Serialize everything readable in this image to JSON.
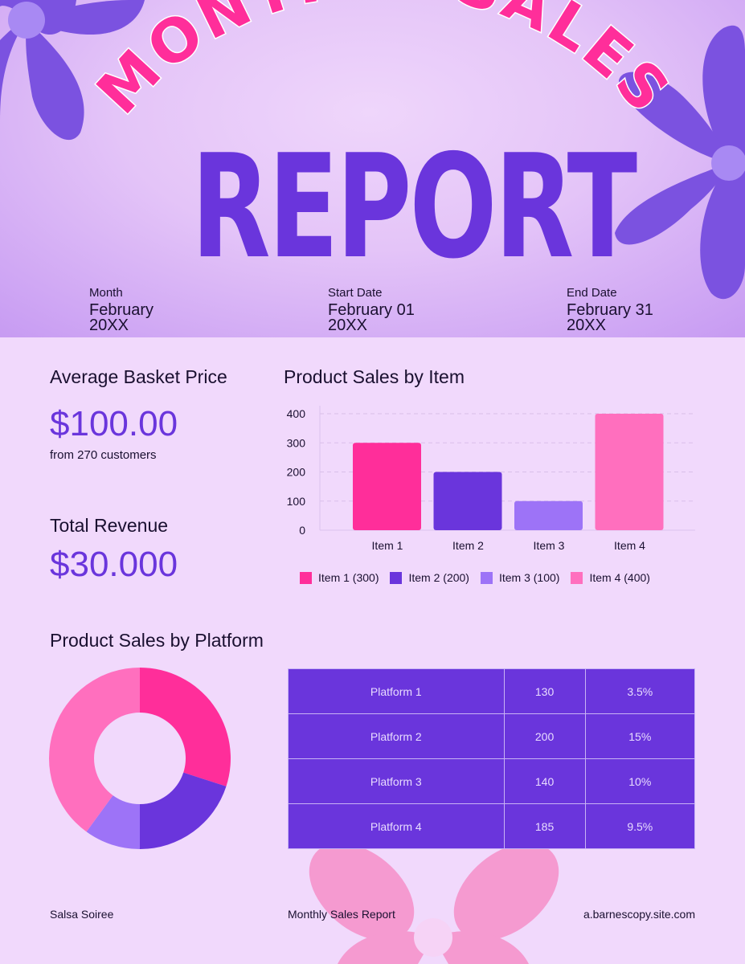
{
  "title": {
    "arc": "MONTHLY SALES",
    "main": "REPORT"
  },
  "dates": [
    {
      "label": "Month",
      "value1": "February",
      "value2": "20XX"
    },
    {
      "label": "Start Date",
      "value1": "February 01",
      "value2": "20XX"
    },
    {
      "label": "End Date",
      "value1": "February 31",
      "value2": "20XX"
    }
  ],
  "basket": {
    "title": "Average Basket Price",
    "value": "$100.00",
    "sub": "from 270 customers"
  },
  "revenue": {
    "title": "Total Revenue",
    "value": "$30.000"
  },
  "colors": {
    "item1": "#ff2e9a",
    "item2": "#6a35dc",
    "item3": "#9d73f7",
    "item4": "#ff6fbe"
  },
  "chart_data": [
    {
      "type": "bar",
      "title": "Product Sales by Item",
      "categories": [
        "Item 1",
        "Item 2",
        "Item 3",
        "Item 4"
      ],
      "values": [
        300,
        200,
        100,
        400
      ],
      "yticks": [
        0,
        100,
        200,
        300,
        400
      ],
      "ylim": [
        0,
        400
      ],
      "grid": true,
      "legend_position": "bottom",
      "legend": [
        "Item 1 (300)",
        "Item 2 (200)",
        "Item 3 (100)",
        "Item 4 (400)"
      ]
    },
    {
      "type": "pie",
      "title": "Product Sales by Platform",
      "categories": [
        "Item 1",
        "Item 2",
        "Item 3",
        "Item 4"
      ],
      "values": [
        300,
        200,
        100,
        400
      ],
      "donut": true
    }
  ],
  "platform_table": [
    [
      "Platform 1",
      "130",
      "3.5%"
    ],
    [
      "Platform 2",
      "200",
      "15%"
    ],
    [
      "Platform 3",
      "140",
      "10%"
    ],
    [
      "Platform 4",
      "185",
      "9.5%"
    ]
  ],
  "footer": {
    "left": "Salsa Soiree",
    "center": "Monthly Sales Report",
    "right": "a.barnescopy.site.com"
  }
}
